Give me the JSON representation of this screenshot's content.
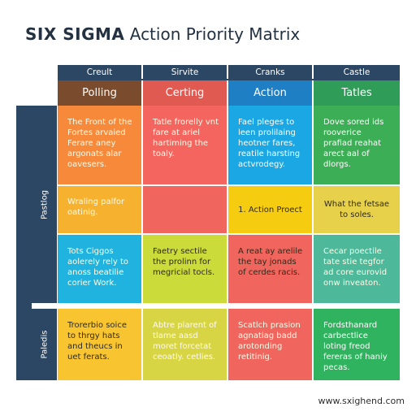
{
  "title": {
    "bold": "SIX SIGMA",
    "rest": " Action Priority Matrix"
  },
  "columns": [
    {
      "top": "Creult",
      "head": "Polling"
    },
    {
      "top": "Sirvite",
      "head": "Certing"
    },
    {
      "top": "Cranks",
      "head": "Action"
    },
    {
      "top": "Castle",
      "head": "Tatles"
    }
  ],
  "side_labels": [
    "Pastlog",
    "Paledis"
  ],
  "rows": [
    [
      "The Front of the Fortes arvaied Ferare aney argonats alar oavesers.",
      "Tatle frorelly vnt fare at ariel hartiming the toaly.",
      "Fael pleges to leen prolilaing heotner fares, reatile harsting actvrodegy.",
      "Dove sored ids rooverice prafiad reahat arect aal of dlorgs."
    ],
    [
      "Wraling palfor oatinig.",
      "",
      "1. Action Proect",
      "What the fetsae to soles."
    ],
    [
      "Tots Ciggos aolerely rely to anoss beatilie corier Work.",
      "Faetry sectile the prolinn for megricial tocls.",
      "A reat ay arelile the tay jonads of cerdes racis.",
      "Cecar poectile tate stie tegfor ad core eurovid onw inveaton."
    ],
    [
      "Trorerbio soice to thrgy hats and theucs in uet ferats.",
      "Abtre plarent of tlame aasd moret forcetat ceoatly. cetlies.",
      "Scatlch prasion agnatiag badd arotonding retitinig.",
      "Fordsthanard carbectlice loting freod fereras of haniy pecas."
    ]
  ],
  "footer": "www.sxighend.com",
  "colors": {
    "navy": "#2c4763",
    "brown": "#7b4b2e",
    "red": "#e15a52",
    "blue": "#1f7fc4",
    "green": "#2f9c58",
    "orange": "#f7893a",
    "salmon": "#f4655f",
    "sky": "#1aa7e4",
    "leaf": "#3cae55",
    "mustard": "#ecc53a",
    "gold": "#f6cc10",
    "khaki": "#e7d04a",
    "amber": "#f9a92e",
    "lime": "#cbdc3a",
    "teal": "#4db99a",
    "cyan": "#21b3df",
    "emerald": "#2fb35e",
    "sun": "#f8c531",
    "olive": "#d8d545",
    "coral": "#f0665e"
  }
}
